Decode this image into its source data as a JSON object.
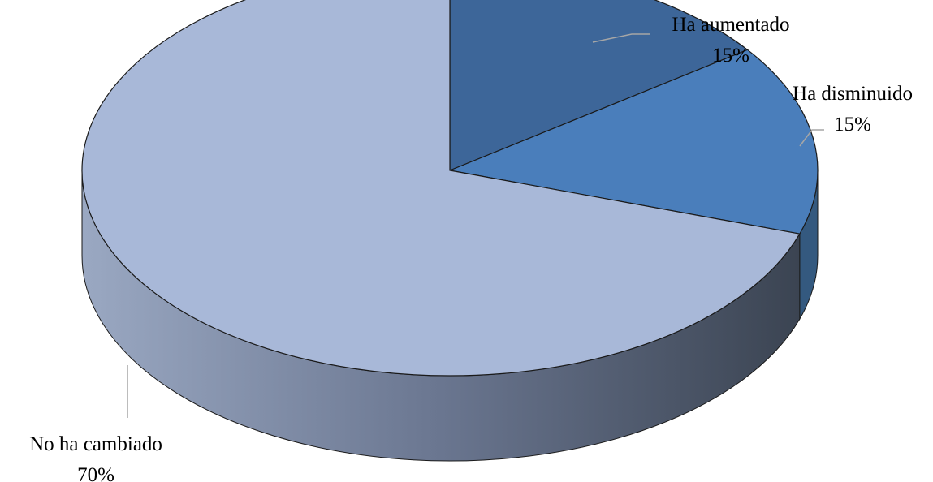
{
  "chart_data": {
    "type": "pie",
    "title": "",
    "style": "3d",
    "categories": [
      "Ha aumentado",
      "Ha disminuido",
      "No ha cambiado"
    ],
    "values": [
      15,
      15,
      70
    ],
    "value_labels": [
      "15%",
      "15%",
      "70%"
    ],
    "colors": [
      "#3d6699",
      "#4a7ebb",
      "#a8b8d8"
    ],
    "side_colors": [
      "#2b4a70",
      "#34597f",
      "#7c8aa6"
    ],
    "legend": "none",
    "data_labels": "outside with leader lines"
  }
}
